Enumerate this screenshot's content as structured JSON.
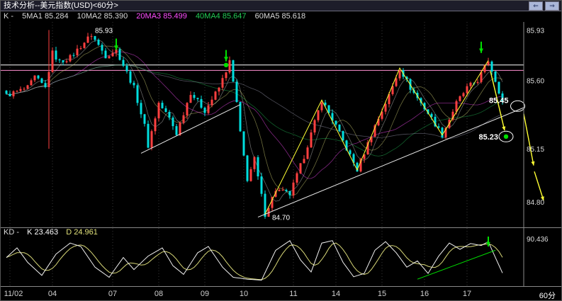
{
  "title_bar": {
    "title": "技术分析--美元指数(USD)<60分>",
    "nav_prev_icon": "⇐",
    "nav_next_icon": "⇒"
  },
  "indicator_row": {
    "prefix": "K -",
    "items": [
      {
        "label": "5MA1",
        "value": "85.284",
        "color": "#d9d9d9"
      },
      {
        "label": "10MA2",
        "value": "85.390",
        "color": "#d9d9d9"
      },
      {
        "label": "20MA3",
        "value": "85.499",
        "color": "#ff4dff"
      },
      {
        "label": "40MA4",
        "value": "85.647",
        "color": "#22cc55"
      },
      {
        "label": "60MA5",
        "value": "85.618",
        "color": "#d9d9d9"
      }
    ]
  },
  "kd_panel": {
    "prefix": "KD -",
    "k_label": "K",
    "k_value": "23.463",
    "d_label": "D",
    "d_value": "24.961",
    "axis_label": "90.436"
  },
  "time_axis": {
    "period_label": "60分"
  },
  "chart_data": {
    "type": "candlestick",
    "title": "技术分析--美元指数(USD)<60分>",
    "symbol": "美元指数 (USD)",
    "interval": "60分",
    "y_axis_ticks": [
      "85.93",
      "85.60",
      "85.15",
      "84.80"
    ],
    "x_ticks": [
      {
        "index": 1,
        "label": "11/02"
      },
      {
        "index": 13,
        "label": "04"
      },
      {
        "index": 30,
        "label": "07"
      },
      {
        "index": 43,
        "label": "08"
      },
      {
        "index": 56,
        "label": "09"
      },
      {
        "index": 67,
        "label": "10"
      },
      {
        "index": 81,
        "label": "11"
      },
      {
        "index": 93,
        "label": "14"
      },
      {
        "index": 106,
        "label": "15"
      },
      {
        "index": 118,
        "label": "16"
      },
      {
        "index": 130,
        "label": "17"
      }
    ],
    "colors": {
      "up": "#ff4040",
      "down": "#00dede",
      "zigzag": "#ffff33",
      "trendline": "#e8e8e8",
      "signal_green": "#00e000",
      "level_white": "#ffffff",
      "level_pink": "#ff8fd0",
      "ma_colors": [
        "#c8c8c8",
        "#d8d878",
        "#ff4dff",
        "#22bb55",
        "#9a9ab0"
      ]
    },
    "levels": [
      {
        "price": 85.7,
        "color": "#ffffff"
      },
      {
        "price": 85.665,
        "color": "#ff8fd0"
      }
    ],
    "price_waypoints": [
      [
        0,
        85.5
      ],
      [
        6,
        85.55
      ],
      [
        8,
        85.62
      ],
      [
        11,
        85.55
      ],
      [
        13,
        85.78
      ],
      [
        15,
        85.72
      ],
      [
        18,
        85.75
      ],
      [
        22,
        85.85
      ],
      [
        24,
        85.9
      ],
      [
        28,
        85.76
      ],
      [
        31,
        85.8
      ],
      [
        36,
        85.55
      ],
      [
        39,
        85.3
      ],
      [
        40,
        85.17
      ],
      [
        43,
        85.45
      ],
      [
        46,
        85.35
      ],
      [
        48,
        85.25
      ],
      [
        52,
        85.52
      ],
      [
        56,
        85.4
      ],
      [
        60,
        85.55
      ],
      [
        63,
        85.72
      ],
      [
        65,
        85.45
      ],
      [
        66,
        85.25
      ],
      [
        68,
        84.95
      ],
      [
        70,
        85.08
      ],
      [
        73,
        84.72
      ],
      [
        76,
        84.88
      ],
      [
        80,
        84.85
      ],
      [
        84,
        85.1
      ],
      [
        89,
        85.47
      ],
      [
        93,
        85.3
      ],
      [
        96,
        85.15
      ],
      [
        99,
        85.01
      ],
      [
        104,
        85.3
      ],
      [
        108,
        85.5
      ],
      [
        111,
        85.68
      ],
      [
        114,
        85.55
      ],
      [
        117,
        85.45
      ],
      [
        120,
        85.35
      ],
      [
        123,
        85.24
      ],
      [
        127,
        85.45
      ],
      [
        130,
        85.55
      ],
      [
        133,
        85.6
      ],
      [
        136,
        85.73
      ],
      [
        138,
        85.6
      ],
      [
        140,
        85.46
      ]
    ],
    "special_candle": {
      "index": 12,
      "high": 85.93,
      "low": 85.15
    },
    "ma_periods": [
      5,
      10,
      20,
      40,
      60
    ],
    "trendlines": [
      {
        "from": [
          38,
          85.12
        ],
        "to": [
          66,
          85.44
        ]
      },
      {
        "from": [
          71,
          84.7
        ],
        "to": [
          146,
          85.42
        ]
      }
    ],
    "zigzag": [
      [
        73,
        84.72
      ],
      [
        89,
        85.47
      ],
      [
        99,
        85.01
      ],
      [
        111,
        85.68
      ],
      [
        123,
        85.24
      ],
      [
        136,
        85.73
      ]
    ],
    "yellow_arrows": [
      {
        "from": [
          136.6,
          85.66
        ],
        "to": [
          140.6,
          85.27
        ]
      },
      {
        "from": [
          146.0,
          85.38
        ],
        "to": [
          148.8,
          85.04
        ]
      },
      {
        "from": [
          149.0,
          85.0
        ],
        "to": [
          151.6,
          84.81
        ]
      }
    ],
    "green_arrows": [
      {
        "index": 31,
        "price": 85.79
      },
      {
        "index": 62,
        "price": 85.715
      },
      {
        "index": 134,
        "price": 85.77
      }
    ],
    "green_dot": {
      "index": 62,
      "price": 85.7
    },
    "annotations": [
      {
        "text": "85.93",
        "index": 24,
        "price": 85.93,
        "anchor": "start",
        "bold": false
      },
      {
        "text": "84.70",
        "index": 74,
        "price": 84.7,
        "anchor": "start",
        "bold": false
      },
      {
        "text": "85.45",
        "index": 142.5,
        "price": 85.47,
        "anchor": "end",
        "bold": true,
        "circle": [
          144.3,
          85.43
        ]
      },
      {
        "text": "85.23",
        "index": 139.6,
        "price": 85.23,
        "anchor": "end",
        "bold": true,
        "circle": [
          141,
          85.23
        ],
        "dot": true
      }
    ],
    "kd": {
      "k_value": 23.463,
      "d_value": 24.961,
      "axis_max_label": "90.436",
      "k_waypoints": [
        [
          0,
          55
        ],
        [
          3,
          75
        ],
        [
          6,
          45
        ],
        [
          10,
          18
        ],
        [
          14,
          62
        ],
        [
          18,
          85
        ],
        [
          21,
          78
        ],
        [
          25,
          35
        ],
        [
          29,
          14
        ],
        [
          33,
          55
        ],
        [
          36,
          30
        ],
        [
          40,
          58
        ],
        [
          44,
          75
        ],
        [
          47,
          38
        ],
        [
          50,
          20
        ],
        [
          54,
          65
        ],
        [
          57,
          78
        ],
        [
          61,
          35
        ],
        [
          64,
          14
        ],
        [
          68,
          10
        ],
        [
          72,
          8
        ],
        [
          76,
          70
        ],
        [
          80,
          90
        ],
        [
          83,
          50
        ],
        [
          86,
          25
        ],
        [
          89,
          85
        ],
        [
          92,
          90
        ],
        [
          95,
          45
        ],
        [
          98,
          15
        ],
        [
          101,
          22
        ],
        [
          104,
          70
        ],
        [
          107,
          88
        ],
        [
          110,
          65
        ],
        [
          113,
          35
        ],
        [
          116,
          48
        ],
        [
          119,
          22
        ],
        [
          122,
          58
        ],
        [
          125,
          85
        ],
        [
          128,
          72
        ],
        [
          131,
          84
        ],
        [
          134,
          80
        ],
        [
          136,
          88
        ],
        [
          138,
          55
        ],
        [
          140,
          23
        ]
      ],
      "green_trendline": {
        "from": [
          116,
          10
        ],
        "to": [
          138,
          70
        ]
      },
      "green_arrow": {
        "index": 136,
        "value": 75
      }
    }
  }
}
